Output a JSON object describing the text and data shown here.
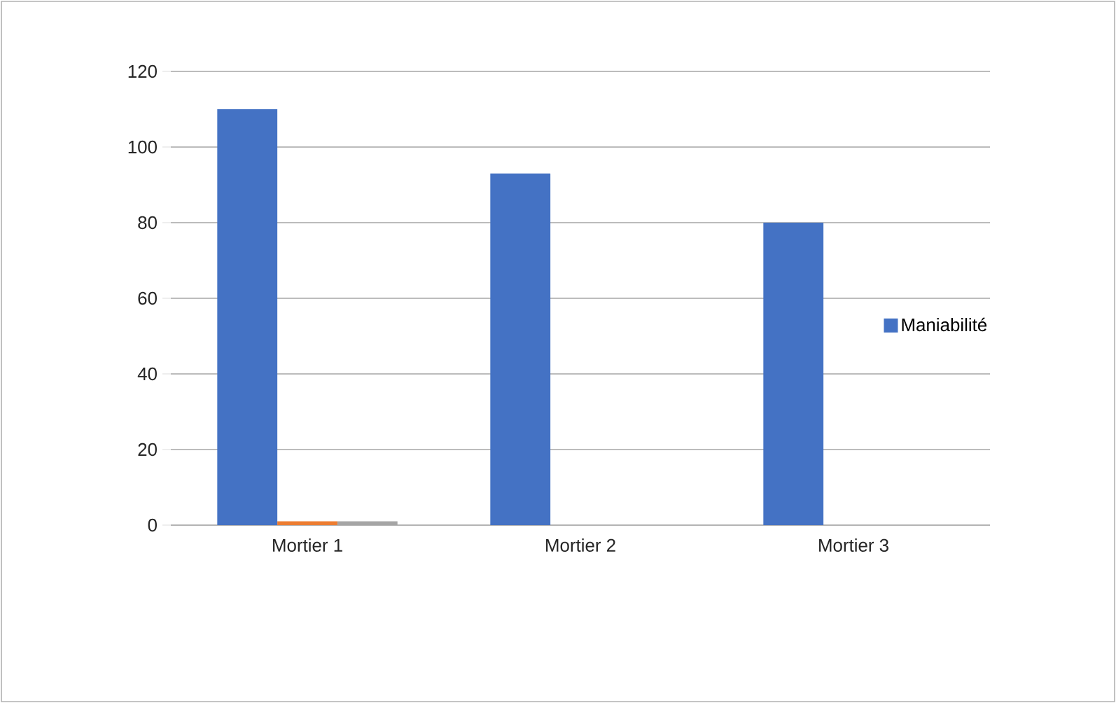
{
  "chart_data": {
    "type": "bar",
    "categories": [
      "Mortier 1",
      "Mortier 2",
      "Mortier 3"
    ],
    "series": [
      {
        "name": "Maniabilité",
        "color": "#4472c4",
        "values": [
          110,
          93,
          80
        ]
      },
      {
        "color": "#ed7d31",
        "values": [
          1,
          null,
          null
        ]
      },
      {
        "color": "#a5a5a5",
        "values": [
          1,
          null,
          null
        ]
      }
    ],
    "ylim": [
      0,
      120
    ],
    "yticks": [
      0,
      20,
      40,
      60,
      80,
      100,
      120
    ],
    "grid": "y",
    "legend": "right"
  }
}
